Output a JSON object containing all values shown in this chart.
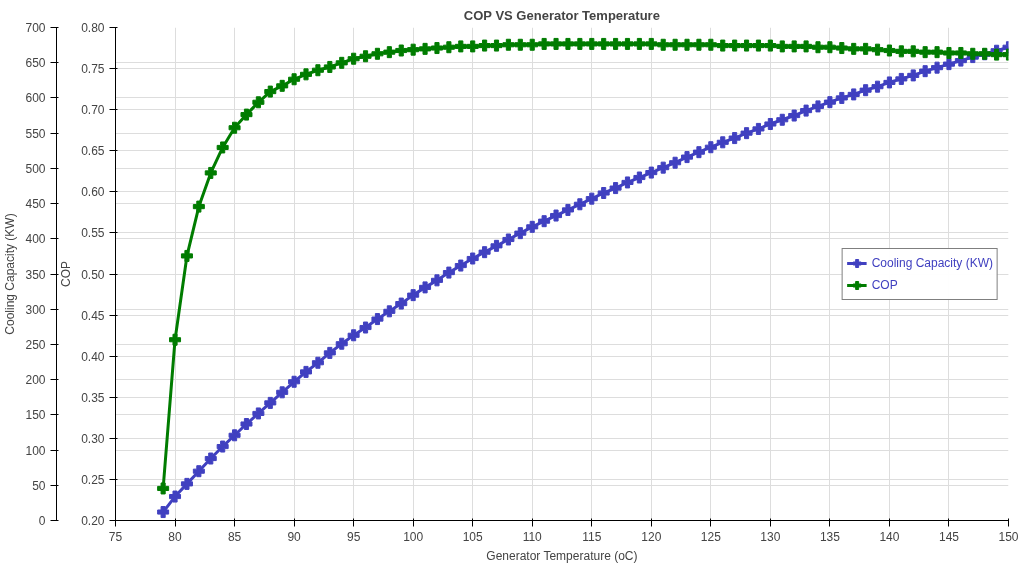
{
  "chart_data": {
    "type": "line",
    "title": "COP VS Generator Temperature",
    "xlabel": "Generator Temperature (oC)",
    "ylabel": "Cooling Capacity (KW)",
    "y2label": "COP",
    "x": [
      79,
      80,
      81,
      82,
      83,
      84,
      85,
      86,
      87,
      88,
      89,
      90,
      91,
      92,
      93,
      94,
      95,
      96,
      97,
      98,
      99,
      100,
      101,
      102,
      103,
      104,
      105,
      106,
      107,
      108,
      109,
      110,
      111,
      112,
      113,
      114,
      115,
      116,
      117,
      118,
      119,
      120,
      121,
      122,
      123,
      124,
      125,
      126,
      127,
      128,
      129,
      130,
      131,
      132,
      133,
      134,
      135,
      136,
      137,
      138,
      139,
      140,
      141,
      142,
      143,
      144,
      145,
      146,
      147,
      148,
      149,
      150
    ],
    "series": [
      {
        "name": "Cooling Capacity (KW)",
        "color": "#4040c0",
        "values": [
          12,
          34,
          52,
          70,
          88,
          105,
          121,
          137,
          152,
          167,
          182,
          197,
          211,
          224,
          238,
          251,
          263,
          274,
          286,
          297,
          308,
          320,
          331,
          341,
          352,
          362,
          372,
          381,
          390,
          399,
          408,
          417,
          425,
          433,
          441,
          449,
          457,
          465,
          472,
          480,
          487,
          494,
          501,
          508,
          516,
          523,
          530,
          537,
          543,
          550,
          556,
          563,
          569,
          575,
          582,
          588,
          594,
          600,
          605,
          611,
          616,
          622,
          627,
          632,
          638,
          643,
          648,
          653,
          658,
          662,
          667,
          672
        ]
      },
      {
        "name": "COP",
        "color": "#007c00",
        "axis": "y2",
        "values": [
          0.239,
          0.42,
          0.522,
          0.582,
          0.623,
          0.654,
          0.678,
          0.694,
          0.709,
          0.722,
          0.729,
          0.737,
          0.743,
          0.748,
          0.752,
          0.757,
          0.762,
          0.765,
          0.768,
          0.77,
          0.772,
          0.773,
          0.774,
          0.775,
          0.776,
          0.777,
          0.777,
          0.778,
          0.778,
          0.779,
          0.779,
          0.779,
          0.78,
          0.78,
          0.78,
          0.78,
          0.78,
          0.78,
          0.78,
          0.78,
          0.78,
          0.78,
          0.779,
          0.779,
          0.779,
          0.779,
          0.779,
          0.778,
          0.778,
          0.778,
          0.778,
          0.778,
          0.777,
          0.777,
          0.777,
          0.776,
          0.776,
          0.775,
          0.774,
          0.774,
          0.773,
          0.772,
          0.771,
          0.771,
          0.77,
          0.77,
          0.769,
          0.769,
          0.768,
          0.768,
          0.767,
          0.767
        ]
      }
    ],
    "xlim": [
      75,
      150
    ],
    "xticks": [
      75,
      80,
      85,
      90,
      95,
      100,
      105,
      110,
      115,
      120,
      125,
      130,
      135,
      140,
      145,
      150
    ],
    "ylim": [
      0,
      700
    ],
    "yticks": [
      0,
      50,
      100,
      150,
      200,
      250,
      300,
      350,
      400,
      450,
      500,
      550,
      600,
      650,
      700
    ],
    "y2lim": [
      0.2,
      0.8
    ],
    "y2ticks": [
      {
        "value": 0.2,
        "label": "0.20"
      },
      {
        "value": 0.25,
        "label": "0.25"
      },
      {
        "value": 0.3,
        "label": "0.30"
      },
      {
        "value": 0.35,
        "label": "0.35"
      },
      {
        "value": 0.4,
        "label": "0.40"
      },
      {
        "value": 0.45,
        "label": "0.45"
      },
      {
        "value": 0.5,
        "label": "0.50"
      },
      {
        "value": 0.55,
        "label": "0.55"
      },
      {
        "value": 0.6,
        "label": "0.60"
      },
      {
        "value": 0.65,
        "label": "0.65"
      },
      {
        "value": 0.7,
        "label": "0.70"
      },
      {
        "value": 0.75,
        "label": "0.75"
      },
      {
        "value": 0.8,
        "label": "0.80"
      }
    ],
    "grid": true,
    "legend": "right",
    "marker": "cross",
    "line_style": "solid"
  }
}
